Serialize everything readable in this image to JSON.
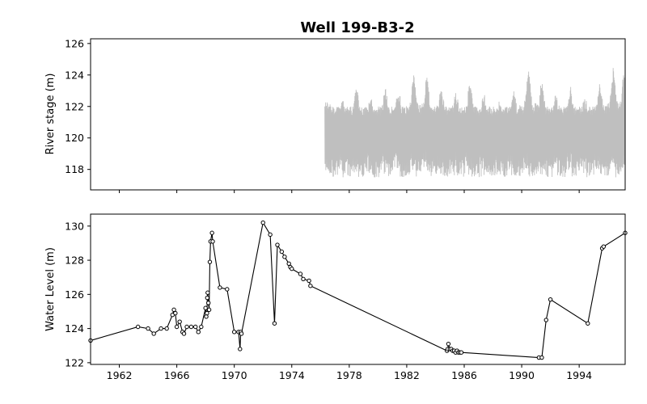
{
  "chart_data": [
    {
      "type": "line",
      "title": "Well 199-B3-2",
      "xlabel": "",
      "ylabel": "River stage (m)",
      "xlim": [
        1960.0,
        1997.2
      ],
      "ylim": [
        116.7,
        126.3
      ],
      "yticks": [
        118,
        120,
        122,
        124,
        126
      ],
      "grid": false,
      "color": "#bfbfbf",
      "data_start": 1976.3,
      "data_end": 1997.2,
      "band_low": 117.5,
      "band_high": 122.0,
      "peaks": [
        {
          "x": 1976.6,
          "y": 122.3
        },
        {
          "x": 1977.5,
          "y": 122.8
        },
        {
          "x": 1978.5,
          "y": 123.2
        },
        {
          "x": 1979.5,
          "y": 122.5
        },
        {
          "x": 1980.5,
          "y": 123.2
        },
        {
          "x": 1981.4,
          "y": 123.0
        },
        {
          "x": 1982.5,
          "y": 124.0
        },
        {
          "x": 1983.4,
          "y": 123.9
        },
        {
          "x": 1984.4,
          "y": 123.1
        },
        {
          "x": 1985.4,
          "y": 122.9
        },
        {
          "x": 1986.4,
          "y": 123.6
        },
        {
          "x": 1987.4,
          "y": 122.8
        },
        {
          "x": 1988.4,
          "y": 122.3
        },
        {
          "x": 1989.4,
          "y": 123.0
        },
        {
          "x": 1990.5,
          "y": 124.4
        },
        {
          "x": 1991.4,
          "y": 123.6
        },
        {
          "x": 1992.4,
          "y": 122.8
        },
        {
          "x": 1993.4,
          "y": 123.3
        },
        {
          "x": 1994.4,
          "y": 122.5
        },
        {
          "x": 1995.4,
          "y": 123.5
        },
        {
          "x": 1996.4,
          "y": 124.6
        },
        {
          "x": 1997.1,
          "y": 124.3
        }
      ]
    },
    {
      "type": "line",
      "title": "",
      "xlabel": "",
      "ylabel": "Water Level (m)",
      "xlim": [
        1960.0,
        1997.2
      ],
      "ylim": [
        121.9,
        130.7
      ],
      "yticks": [
        122,
        124,
        126,
        128,
        130
      ],
      "xticks": [
        1962,
        1966,
        1970,
        1974,
        1978,
        1982,
        1986,
        1990,
        1994
      ],
      "xtick_labels": [
        "1962",
        "1966",
        "1970",
        "1974",
        "1978",
        "1982",
        "1986",
        "1990",
        "1994"
      ],
      "grid": false,
      "color": "#000000",
      "marker": "o",
      "x": [
        1960.0,
        1963.3,
        1964.0,
        1964.4,
        1964.9,
        1965.3,
        1965.7,
        1965.8,
        1965.9,
        1966.0,
        1966.2,
        1966.4,
        1966.5,
        1966.7,
        1967.0,
        1967.3,
        1967.5,
        1967.7,
        1968.0,
        1968.05,
        1968.1,
        1968.12,
        1968.15,
        1968.2,
        1968.25,
        1968.3,
        1968.35,
        1968.45,
        1968.5,
        1969.0,
        1969.5,
        1970.0,
        1970.3,
        1970.4,
        1970.45,
        1970.5,
        1972.0,
        1972.5,
        1972.8,
        1973.0,
        1973.3,
        1973.5,
        1973.8,
        1973.9,
        1974.0,
        1974.6,
        1974.8,
        1975.2,
        1975.3,
        1984.8,
        1984.85,
        1984.9,
        1985.0,
        1985.1,
        1985.2,
        1985.3,
        1985.4,
        1985.5,
        1985.6,
        1985.7,
        1985.8,
        1991.2,
        1991.4,
        1991.7,
        1992.0,
        1994.6,
        1995.6,
        1995.7,
        1997.2
      ],
      "y": [
        123.3,
        124.1,
        124.0,
        123.7,
        124.0,
        124.0,
        124.8,
        125.1,
        124.9,
        124.1,
        124.4,
        123.8,
        123.7,
        124.1,
        124.1,
        124.1,
        123.8,
        124.1,
        125.2,
        124.7,
        124.9,
        125.8,
        126.1,
        125.5,
        125.1,
        127.9,
        129.1,
        129.6,
        129.1,
        126.4,
        126.3,
        123.8,
        123.8,
        122.8,
        123.8,
        123.7,
        130.2,
        129.5,
        124.3,
        128.9,
        128.5,
        128.2,
        127.8,
        127.6,
        127.5,
        127.2,
        126.9,
        126.8,
        126.5,
        122.7,
        122.8,
        123.1,
        122.8,
        122.8,
        122.7,
        122.7,
        122.6,
        122.7,
        122.6,
        122.6,
        122.6,
        122.3,
        122.3,
        124.5,
        125.7,
        124.3,
        128.7,
        128.8,
        129.6
      ]
    }
  ]
}
